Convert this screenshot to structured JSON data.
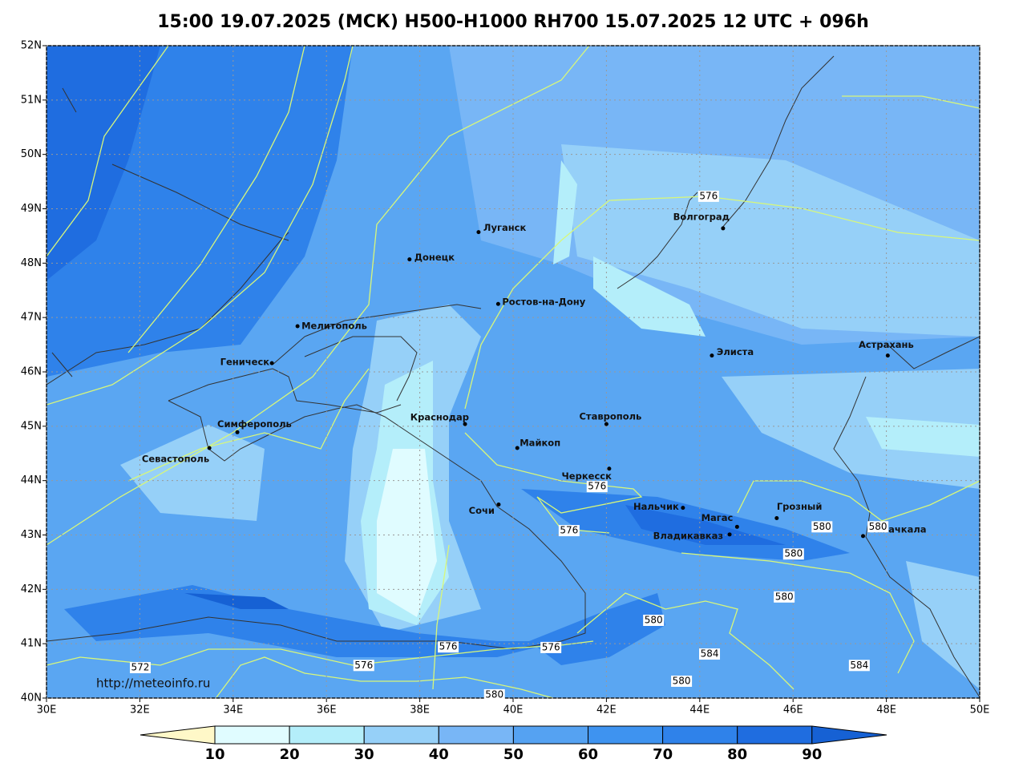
{
  "title": "15:00 19.07.2025 (МСК) H500-H1000 RH700 15.07.2025 12 UTC + 096h",
  "map": {
    "xlim": [
      30,
      50
    ],
    "ylim": [
      40,
      52
    ],
    "xticks": [
      {
        "value": 30,
        "label": "30E"
      },
      {
        "value": 32,
        "label": "32E"
      },
      {
        "value": 34,
        "label": "34E"
      },
      {
        "value": 36,
        "label": "36E"
      },
      {
        "value": 38,
        "label": "38E"
      },
      {
        "value": 40,
        "label": "40E"
      },
      {
        "value": 42,
        "label": "42E"
      },
      {
        "value": 44,
        "label": "44E"
      },
      {
        "value": 46,
        "label": "46E"
      },
      {
        "value": 48,
        "label": "48E"
      },
      {
        "value": 50,
        "label": "50E"
      }
    ],
    "yticks": [
      {
        "value": 40,
        "label": "40N"
      },
      {
        "value": 41,
        "label": "41N"
      },
      {
        "value": 42,
        "label": "42N"
      },
      {
        "value": 43,
        "label": "43N"
      },
      {
        "value": 44,
        "label": "44N"
      },
      {
        "value": 45,
        "label": "45N"
      },
      {
        "value": 46,
        "label": "46N"
      },
      {
        "value": 47,
        "label": "47N"
      },
      {
        "value": 48,
        "label": "48N"
      },
      {
        "value": 49,
        "label": "49N"
      },
      {
        "value": 50,
        "label": "50N"
      },
      {
        "value": 51,
        "label": "51N"
      },
      {
        "value": 52,
        "label": "52N"
      }
    ],
    "cities": [
      {
        "name": "Луганск",
        "lon": 39.26,
        "lat": 48.57
      },
      {
        "name": "Донецк",
        "lon": 37.78,
        "lat": 48.07
      },
      {
        "name": "Ростов-на-Дону",
        "lon": 39.68,
        "lat": 47.25
      },
      {
        "name": "Мелитополь",
        "lon": 35.38,
        "lat": 46.84
      },
      {
        "name": "Геническ",
        "lon": 34.83,
        "lat": 46.16
      },
      {
        "name": "Симферополь",
        "lon": 34.09,
        "lat": 44.89
      },
      {
        "name": "Севастополь",
        "lon": 33.49,
        "lat": 44.6
      },
      {
        "name": "Краснодар",
        "lon": 38.97,
        "lat": 45.04
      },
      {
        "name": "Майкоп",
        "lon": 40.09,
        "lat": 44.6
      },
      {
        "name": "Ставрополь",
        "lon": 42.0,
        "lat": 45.04
      },
      {
        "name": "Черкесск",
        "lon": 42.06,
        "lat": 44.22
      },
      {
        "name": "Нальчик",
        "lon": 43.64,
        "lat": 43.5
      },
      {
        "name": "Сочи",
        "lon": 39.69,
        "lat": 43.56
      },
      {
        "name": "Владикавказ",
        "lon": 44.64,
        "lat": 43.01
      },
      {
        "name": "Магас",
        "lon": 44.8,
        "lat": 43.15
      },
      {
        "name": "Грозный",
        "lon": 45.65,
        "lat": 43.31
      },
      {
        "name": "Махачкала",
        "lon": 47.5,
        "lat": 42.98
      },
      {
        "name": "Элиста",
        "lon": 44.26,
        "lat": 46.3
      },
      {
        "name": "Астрахань",
        "lon": 48.03,
        "lat": 46.3
      },
      {
        "name": "Волгоград",
        "lon": 44.5,
        "lat": 48.64
      }
    ],
    "contour_labels": [
      {
        "value": 576,
        "lon": 44.19,
        "lat": 49.23
      },
      {
        "value": 576,
        "lon": 41.8,
        "lat": 43.89
      },
      {
        "value": 576,
        "lon": 41.2,
        "lat": 43.08
      },
      {
        "value": 580,
        "lon": 46.62,
        "lat": 43.15
      },
      {
        "value": 580,
        "lon": 47.82,
        "lat": 43.15
      },
      {
        "value": 580,
        "lon": 46.01,
        "lat": 42.65
      },
      {
        "value": 580,
        "lon": 45.81,
        "lat": 41.86
      },
      {
        "value": 580,
        "lon": 43.01,
        "lat": 41.43
      },
      {
        "value": 584,
        "lon": 44.21,
        "lat": 40.81
      },
      {
        "value": 584,
        "lon": 47.42,
        "lat": 40.6
      },
      {
        "value": 580,
        "lon": 43.61,
        "lat": 40.31
      },
      {
        "value": 576,
        "lon": 40.81,
        "lat": 40.93
      },
      {
        "value": 576,
        "lon": 38.61,
        "lat": 40.94
      },
      {
        "value": 576,
        "lon": 36.8,
        "lat": 40.6
      },
      {
        "value": 572,
        "lon": 32.01,
        "lat": 40.56
      },
      {
        "value": 580,
        "lon": 39.6,
        "lat": 40.06
      }
    ],
    "source": "http://meteoinfo.ru"
  },
  "colorbar": {
    "levels": [
      10,
      20,
      30,
      40,
      50,
      60,
      70,
      80,
      90
    ],
    "colors": [
      "#fff8c8",
      "#e0fcff",
      "#b4eefa",
      "#96d0f8",
      "#78b6f6",
      "#55a2f2",
      "#3e93f0",
      "#2f82ea",
      "#1f6de0",
      "#1661d4"
    ]
  }
}
